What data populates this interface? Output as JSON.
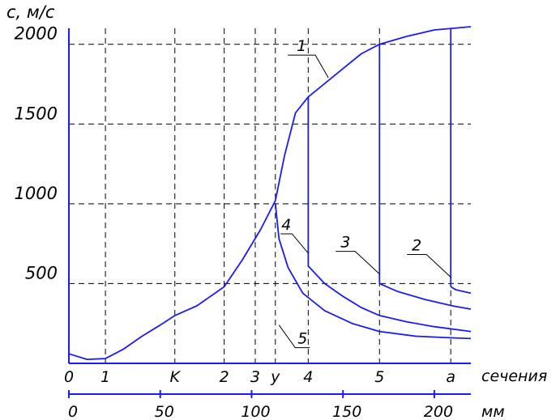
{
  "chart_data": {
    "type": "line",
    "ylabel": "c, м/с",
    "ylim": [
      0,
      2100
    ],
    "yticks": [
      500,
      1000,
      1500,
      2000
    ],
    "xlim": [
      0,
      220
    ],
    "x_mm_ticks": [
      0,
      50,
      100,
      150,
      200
    ],
    "x_mm_label": "мм",
    "sections_label": "сечения",
    "sections": [
      {
        "name": "0",
        "x": 0
      },
      {
        "name": "1",
        "x": 20
      },
      {
        "name": "K",
        "x": 58
      },
      {
        "name": "2",
        "x": 85
      },
      {
        "name": "3",
        "x": 102
      },
      {
        "name": "у",
        "x": 113
      },
      {
        "name": "4",
        "x": 131
      },
      {
        "name": "5",
        "x": 170
      },
      {
        "name": "а",
        "x": 209
      }
    ],
    "grid": true,
    "accent_color": "#1a1aff",
    "series": [
      {
        "name": "1",
        "x": [
          0,
          10,
          20,
          30,
          40,
          50,
          58,
          70,
          85,
          95,
          105,
          113,
          118,
          124,
          131,
          145,
          160,
          170,
          185,
          200,
          220
        ],
        "values": [
          60,
          25,
          30,
          90,
          170,
          240,
          300,
          360,
          480,
          650,
          840,
          1020,
          1300,
          1570,
          1670,
          1800,
          1940,
          2000,
          2050,
          2090,
          2110
        ]
      },
      {
        "name": "2",
        "x": [
          209,
          212,
          216,
          220
        ],
        "values": [
          480,
          460,
          450,
          440
        ]
      },
      {
        "name": "3",
        "x": [
          170,
          180,
          195,
          210,
          220
        ],
        "values": [
          500,
          450,
          400,
          360,
          340
        ]
      },
      {
        "name": "4",
        "x": [
          131,
          140,
          150,
          160,
          170,
          185,
          200,
          220
        ],
        "values": [
          610,
          500,
          420,
          350,
          300,
          260,
          230,
          200
        ]
      },
      {
        "name": "5",
        "x": [
          113,
          115,
          120,
          128,
          140,
          155,
          170,
          190,
          210,
          220
        ],
        "values": [
          1000,
          780,
          600,
          440,
          330,
          250,
          200,
          170,
          160,
          155
        ]
      }
    ],
    "annotations": [
      {
        "text": "1",
        "x": 142,
        "y": 1790
      },
      {
        "text": "2",
        "x": 209,
        "y": 540
      },
      {
        "text": "3",
        "x": 170,
        "y": 560
      },
      {
        "text": "4",
        "x": 131,
        "y": 690
      },
      {
        "text": "5",
        "x": 115,
        "y": 240
      }
    ]
  }
}
